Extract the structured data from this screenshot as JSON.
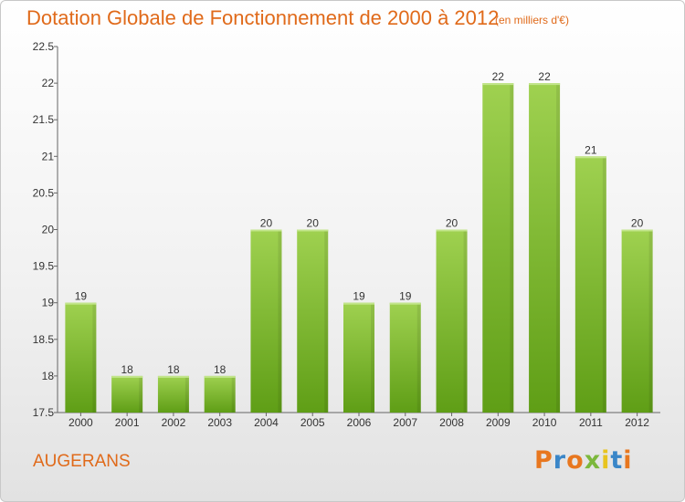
{
  "chart_data": {
    "type": "bar",
    "title": "Dotation Globale de Fonctionnement de 2000 à 2012",
    "subtitle": "(en milliers d'€)",
    "categories": [
      "2000",
      "2001",
      "2002",
      "2003",
      "2004",
      "2005",
      "2006",
      "2007",
      "2008",
      "2009",
      "2010",
      "2011",
      "2012"
    ],
    "values": [
      19,
      18,
      18,
      18,
      20,
      20,
      19,
      19,
      20,
      22,
      22,
      21,
      20
    ],
    "ylim": [
      17.5,
      22.5
    ],
    "yticks": [
      "17.5",
      "18",
      "18.5",
      "19",
      "19.5",
      "20",
      "20.5",
      "21",
      "21.5",
      "22",
      "22.5"
    ],
    "grid": false,
    "bar_color": "#7dc22e"
  },
  "footer": {
    "commune": "AUGERANS",
    "logo": "Proxiti",
    "logo_colors": [
      "#e8771f",
      "#3a86c8",
      "#e8771f",
      "#7cb83c",
      "#e8c41f",
      "#3a86c8",
      "#e8771f"
    ]
  }
}
